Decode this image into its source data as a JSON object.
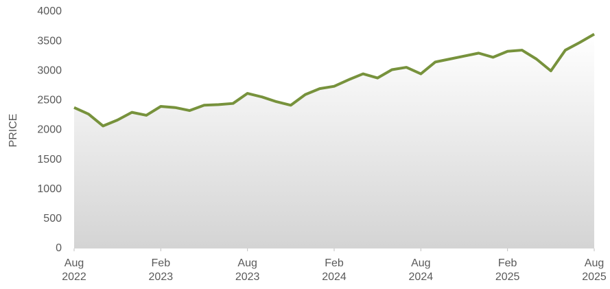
{
  "chart_data": {
    "type": "area",
    "ylabel": "PRICE",
    "x": [
      "2022-08",
      "2022-09",
      "2022-10",
      "2022-11",
      "2022-12",
      "2023-01",
      "2023-02",
      "2023-03",
      "2023-04",
      "2023-05",
      "2023-06",
      "2023-07",
      "2023-08",
      "2023-09",
      "2023-10",
      "2023-11",
      "2023-12",
      "2024-01",
      "2024-02",
      "2024-03",
      "2024-04",
      "2024-05",
      "2024-06",
      "2024-07",
      "2024-08",
      "2024-09",
      "2024-10",
      "2024-11",
      "2024-12",
      "2025-01",
      "2025-02",
      "2025-03",
      "2025-04",
      "2025-05",
      "2025-06",
      "2025-07",
      "2025-08"
    ],
    "series": [
      {
        "name": "PRICE",
        "color": "#77923c",
        "values": [
          2380,
          2270,
          2070,
          2170,
          2300,
          2250,
          2400,
          2380,
          2330,
          2420,
          2430,
          2450,
          2620,
          2560,
          2480,
          2420,
          2600,
          2700,
          2740,
          2850,
          2950,
          2880,
          3020,
          3060,
          2950,
          3150,
          3200,
          3250,
          3300,
          3230,
          3330,
          3350,
          3200,
          3000,
          3350,
          3480,
          3620
        ]
      }
    ],
    "xlim": [
      "2022-08",
      "2025-08"
    ],
    "xticks": [
      {
        "value": "2022-08",
        "label": "Aug 2022"
      },
      {
        "value": "2023-02",
        "label": "Feb 2023"
      },
      {
        "value": "2023-08",
        "label": "Aug 2023"
      },
      {
        "value": "2024-02",
        "label": "Feb 2024"
      },
      {
        "value": "2024-08",
        "label": "Aug 2024"
      },
      {
        "value": "2025-02",
        "label": "Feb 2025"
      },
      {
        "value": "2025-08",
        "label": "Aug 2025"
      }
    ],
    "ylim": [
      0,
      4000
    ],
    "yticks": [
      0,
      500,
      1000,
      1500,
      2000,
      2500,
      3000,
      3500,
      4000
    ],
    "grid": false
  }
}
